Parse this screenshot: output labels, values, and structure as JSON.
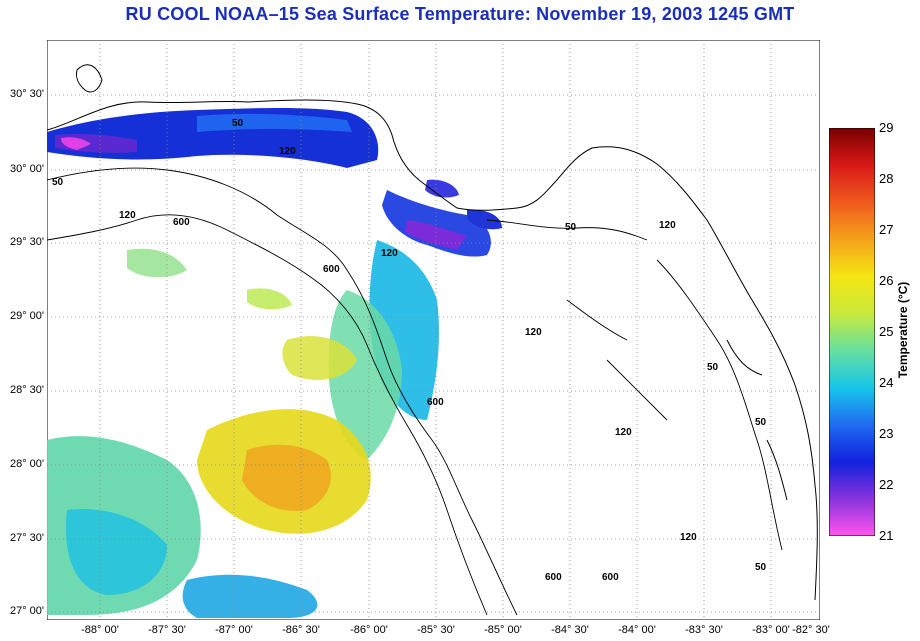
{
  "title": "RU COOL  NOAA–15  Sea Surface Temperature:  November 19, 2003 1245 GMT",
  "map": {
    "lat_labels": [
      "30° 30'",
      "30° 00'",
      "29° 30'",
      "29° 00'",
      "28° 30'",
      "28° 00'",
      "27° 30'",
      "27° 00'"
    ],
    "lon_labels": [
      "-88° 00'",
      "-87° 30'",
      "-87° 00'",
      "-86° 30'",
      "-86° 00'",
      "-85° 30'",
      "-85° 00'",
      "-84° 30'",
      "-84° 00'",
      "-83° 30'",
      "-83° 00'",
      "-82° 30'"
    ],
    "contour_labels": [
      "50",
      "120",
      "600",
      "600",
      "120",
      "50",
      "120",
      "600",
      "120",
      "120",
      "50",
      "50",
      "600",
      "120",
      "50",
      "50",
      "120",
      "600"
    ]
  },
  "colorbar": {
    "title": "Temperature (°C)",
    "ticks": [
      "29",
      "28",
      "27",
      "26",
      "25",
      "24",
      "23",
      "22",
      "21"
    ],
    "range": [
      21,
      29
    ],
    "colors": [
      "#ff55ee",
      "#8833dd",
      "#1122dd",
      "#1f6cf0",
      "#17c6e8",
      "#66e0a0",
      "#c8ea3c",
      "#f5e614",
      "#f5a21b",
      "#f05a1e",
      "#d81818",
      "#7a0000"
    ]
  }
}
